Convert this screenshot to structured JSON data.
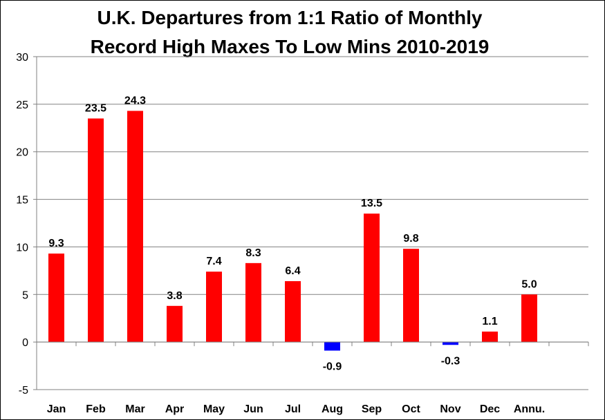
{
  "chart_data": {
    "type": "bar",
    "title": "U.K. Departures from 1:1 Ratio of Monthly Record High Maxes To Low Mins 2010-2019",
    "title_lines": [
      "U.K. Departures from 1:1 Ratio of Monthly",
      "Record High Maxes To Low Mins 2010-2019"
    ],
    "xlabel": "",
    "ylabel": "",
    "categories": [
      "Jan",
      "Feb",
      "Mar",
      "Apr",
      "May",
      "Jun",
      "Jul",
      "Aug",
      "Sep",
      "Oct",
      "Nov",
      "Dec",
      "Annu."
    ],
    "values": [
      9.3,
      23.5,
      24.3,
      3.8,
      7.4,
      8.3,
      6.4,
      -0.9,
      13.5,
      9.8,
      -0.3,
      1.1,
      5.0
    ],
    "data_labels": [
      "9.3",
      "23.5",
      "24.3",
      "3.8",
      "7.4",
      "8.3",
      "6.4",
      "-0.9",
      "13.5",
      "9.8",
      "-0.3",
      "1.1",
      "5.0"
    ],
    "ylim": [
      -5,
      30
    ],
    "yticks": [
      "-5",
      "0",
      "5",
      "10",
      "15",
      "20",
      "25",
      "30"
    ],
    "ytick_values": [
      -5,
      0,
      5,
      10,
      15,
      20,
      25,
      30
    ],
    "grid": true,
    "legend": "none",
    "colors": {
      "positive": "#ff0000",
      "negative": "#0000ff",
      "grid": "#808080",
      "axis": "#808080"
    }
  }
}
